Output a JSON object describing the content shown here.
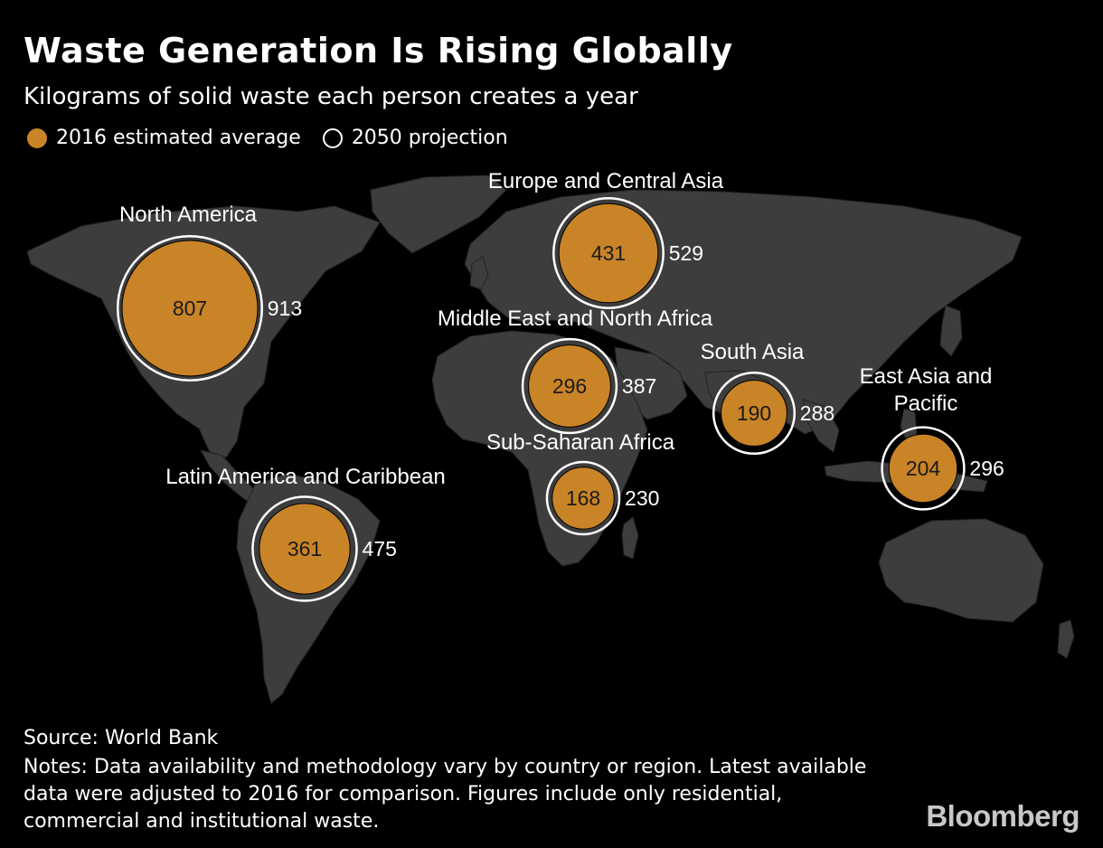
{
  "title": "Waste Generation Is Rising Globally",
  "subtitle": "Kilograms of solid waste each person creates a year",
  "legend": {
    "filled_label": "2016 estimated average",
    "hollow_label": "2050 projection"
  },
  "colors": {
    "background": "#000000",
    "land": "#3d3d3d",
    "bubble_2016": "#c98427",
    "ring_2050": "#ffffff"
  },
  "chart_data": {
    "type": "bubble-map",
    "unit": "kg per person per year",
    "series": [
      {
        "name": "2016 estimated average",
        "key": "v2016"
      },
      {
        "name": "2050 projection",
        "key": "v2050"
      }
    ],
    "regions": [
      {
        "name": "North America",
        "v2016": 807,
        "v2050": 913
      },
      {
        "name": "Europe and Central Asia",
        "v2016": 431,
        "v2050": 529
      },
      {
        "name": "Middle East and North Africa",
        "v2016": 296,
        "v2050": 387
      },
      {
        "name": "South Asia",
        "v2016": 190,
        "v2050": 288
      },
      {
        "name": "East Asia and Pacific",
        "v2016": 204,
        "v2050": 296
      },
      {
        "name": "Sub-Saharan Africa",
        "v2016": 168,
        "v2050": 230
      },
      {
        "name": "Latin America and Caribbean",
        "v2016": 361,
        "v2050": 475
      }
    ]
  },
  "footer": {
    "source": "Source: World Bank",
    "notes": "Notes: Data availability and methodology vary by country or region. Latest available data were adjusted to 2016 for comparison. Figures include only residential, commercial and institutional waste.",
    "logo": "Bloomberg"
  }
}
